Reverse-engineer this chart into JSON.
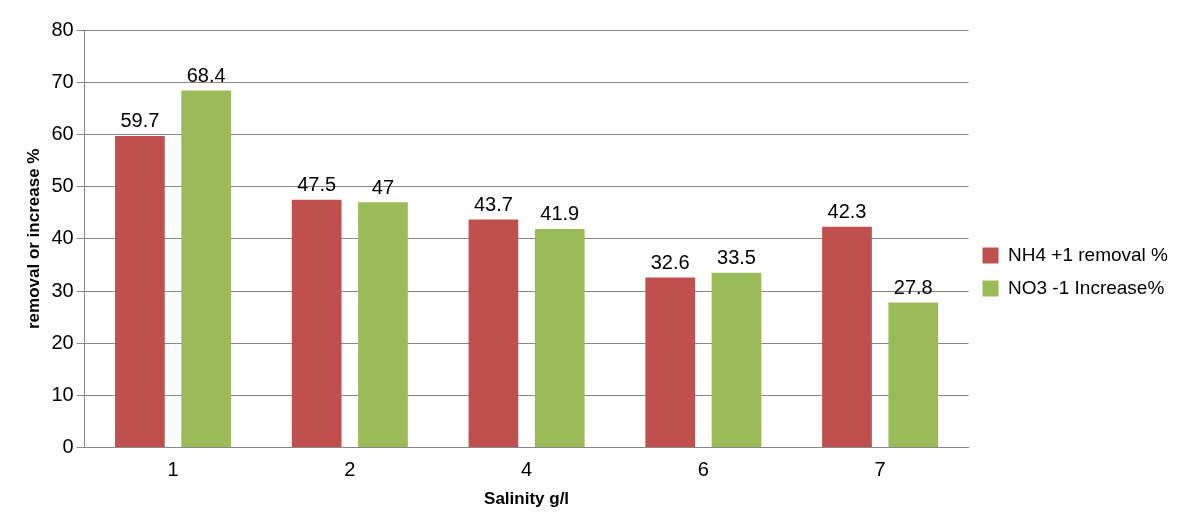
{
  "chart_data": {
    "type": "bar",
    "xlabel": "Salinity g/l",
    "ylabel": "removal or increase %",
    "categories": [
      "1",
      "2",
      "4",
      "6",
      "7"
    ],
    "series": [
      {
        "name": "NH4 +1 removal %",
        "color": "#c0504d",
        "values": [
          59.7,
          47.5,
          43.7,
          32.6,
          42.3
        ]
      },
      {
        "name": "NO3 -1 Increase%",
        "color": "#9bbb59",
        "values": [
          68.4,
          47,
          41.9,
          33.5,
          27.8
        ]
      }
    ],
    "ylim": [
      0,
      80
    ],
    "yticks": [
      0,
      10,
      20,
      30,
      40,
      50,
      60,
      70,
      80
    ],
    "grid": "y",
    "legend": "right",
    "data_labels": true
  }
}
